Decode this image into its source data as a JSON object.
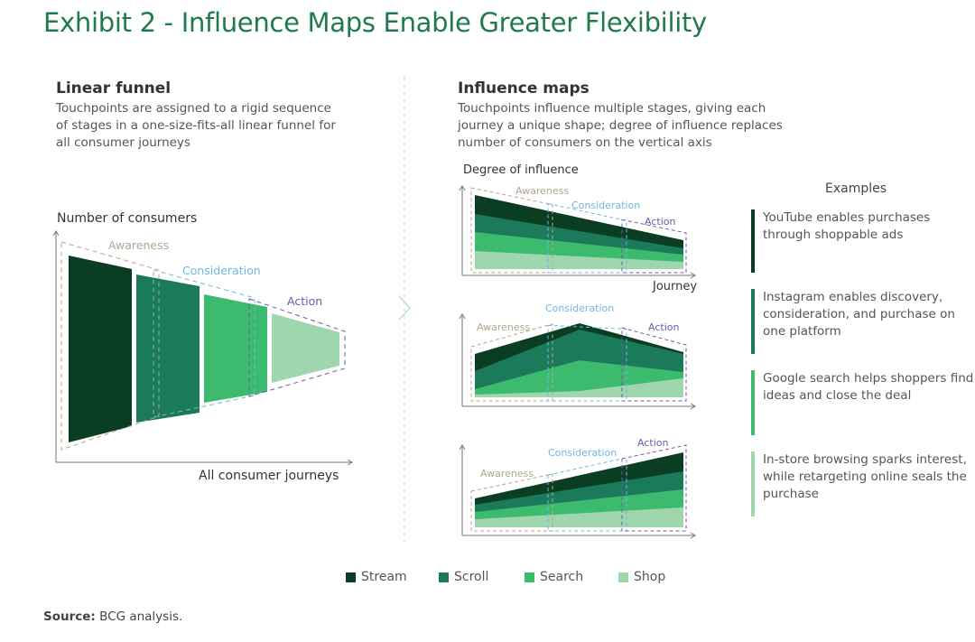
{
  "title": "Exhibit 2 - Influence Maps Enable Greater Flexibility",
  "left": {
    "title": "Linear funnel",
    "desc": "Touchpoints are assigned to a rigid sequence of stages in a one-size-fits-all linear funnel for all consumer journeys",
    "y_label": "Number of consumers",
    "x_label": "All consumer journeys"
  },
  "right": {
    "title": "Influence maps",
    "desc": "Touchpoints influence multiple stages, giving each journey a unique shape; degree of influence replaces number of consumers on the vertical axis",
    "y_label": "Degree of influence",
    "x_label": "Journey"
  },
  "stages": {
    "awareness": "Awareness",
    "consideration": "Consideration",
    "action": "Action"
  },
  "examples": {
    "title": "Examples",
    "items": [
      {
        "text": "YouTube enables purchases through shoppable ads",
        "color": "#0b3d22"
      },
      {
        "text": "Instagram enables discovery, consideration, and purchase on one platform",
        "color": "#1a7a5a"
      },
      {
        "text": "Google search helps shoppers find ideas and close the deal",
        "color": "#3cbb6e"
      },
      {
        "text": "In-store browsing sparks interest, while retargeting online seals the purchase",
        "color": "#9fd6ae"
      }
    ]
  },
  "legend": [
    {
      "label": "Stream",
      "color": "#0b3d22"
    },
    {
      "label": "Scroll",
      "color": "#1a7a5a"
    },
    {
      "label": "Search",
      "color": "#3cbb6e"
    },
    {
      "label": "Shop",
      "color": "#9fd6ae"
    }
  ],
  "source": {
    "label": "Source:",
    "text": " BCG analysis."
  }
}
